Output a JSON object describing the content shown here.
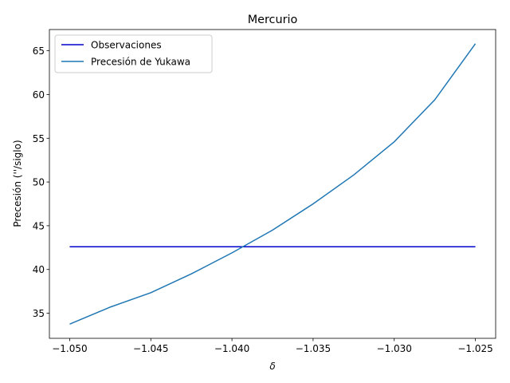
{
  "chart_data": {
    "type": "line",
    "title": "Mercurio",
    "xlabel": "δ",
    "ylabel": "Precesión (''/siglo)",
    "xlim": [
      -1.05125,
      -1.02375
    ],
    "ylim": [
      32.13,
      67.43
    ],
    "xticks": [
      -1.05,
      -1.045,
      -1.04,
      -1.035,
      -1.03,
      -1.025
    ],
    "xtick_labels": [
      "−1.050",
      "−1.045",
      "−1.040",
      "−1.035",
      "−1.030",
      "−1.025"
    ],
    "yticks": [
      35,
      40,
      45,
      50,
      55,
      60,
      65
    ],
    "ytick_labels": [
      "35",
      "40",
      "45",
      "50",
      "55",
      "60",
      "65"
    ],
    "grid": false,
    "legend_position": "top-left",
    "series": [
      {
        "name": "Observaciones",
        "color": "#0000cd",
        "x": [
          -1.05,
          -1.025
        ],
        "y": [
          42.6,
          42.6
        ]
      },
      {
        "name": "Precesión de Yukawa",
        "color": "#1f77b4",
        "x": [
          -1.05,
          -1.0475,
          -1.045,
          -1.0425,
          -1.04,
          -1.0375,
          -1.035,
          -1.0325,
          -1.03,
          -1.0275,
          -1.025
        ],
        "y": [
          33.75,
          35.7,
          37.35,
          39.5,
          41.9,
          44.5,
          47.5,
          50.8,
          54.6,
          59.4,
          65.8
        ]
      }
    ]
  }
}
